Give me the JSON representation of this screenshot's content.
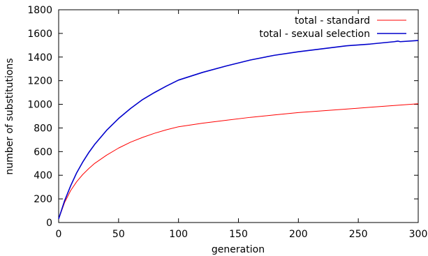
{
  "chart_data": {
    "type": "line",
    "title": "",
    "xlabel": "generation",
    "ylabel": "number of substitutions",
    "xlim": [
      0,
      300
    ],
    "ylim": [
      0,
      1800
    ],
    "xticks": [
      "0",
      "50",
      "100",
      "150",
      "200",
      "250",
      "300"
    ],
    "yticks": [
      "0",
      "200",
      "400",
      "600",
      "800",
      "1000",
      "1200",
      "1400",
      "1600",
      "1800"
    ],
    "grid": false,
    "legend_position": "top-right",
    "series": [
      {
        "name": "total - standard",
        "color": "#ff0000",
        "x": [
          0,
          5,
          10,
          15,
          20,
          25,
          30,
          40,
          50,
          60,
          70,
          80,
          90,
          100,
          120,
          140,
          160,
          180,
          200,
          220,
          240,
          260,
          280,
          300
        ],
        "y": [
          30,
          170,
          270,
          345,
          405,
          455,
          500,
          570,
          630,
          680,
          720,
          755,
          785,
          810,
          840,
          865,
          890,
          910,
          930,
          945,
          960,
          975,
          990,
          1005
        ]
      },
      {
        "name": "total - sexual selection",
        "color": "#0000cc",
        "x": [
          0,
          5,
          10,
          15,
          20,
          25,
          30,
          40,
          50,
          60,
          70,
          80,
          90,
          100,
          120,
          140,
          160,
          180,
          200,
          220,
          240,
          260,
          280,
          283,
          285,
          300
        ],
        "y": [
          30,
          185,
          310,
          420,
          510,
          590,
          660,
          780,
          880,
          965,
          1040,
          1100,
          1155,
          1205,
          1270,
          1325,
          1375,
          1415,
          1445,
          1470,
          1495,
          1510,
          1530,
          1535,
          1530,
          1540
        ]
      }
    ]
  }
}
